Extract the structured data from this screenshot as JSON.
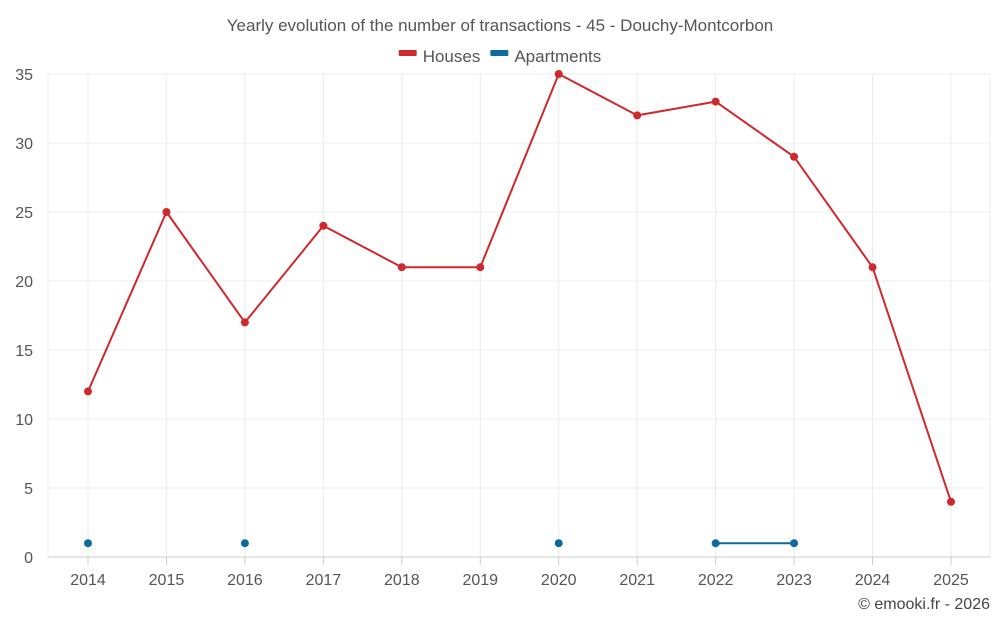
{
  "chart_data": {
    "type": "line",
    "title": "Yearly evolution of the number of transactions - 45 - Douchy-Montcorbon",
    "xlabel": "",
    "ylabel": "",
    "categories": [
      "2014",
      "2015",
      "2016",
      "2017",
      "2018",
      "2019",
      "2020",
      "2021",
      "2022",
      "2023",
      "2024",
      "2025"
    ],
    "ylim": [
      0,
      35
    ],
    "yticks": [
      0,
      5,
      10,
      15,
      20,
      25,
      30,
      35
    ],
    "grid": true,
    "legend_position": "top-center",
    "series": [
      {
        "name": "Houses",
        "color": "#d0282c",
        "values": [
          12,
          25,
          17,
          24,
          21,
          21,
          35,
          32,
          33,
          29,
          21,
          4
        ]
      },
      {
        "name": "Apartments",
        "color": "#0d6a9c",
        "values": [
          1,
          null,
          1,
          null,
          null,
          null,
          1,
          null,
          1,
          1,
          null,
          null
        ]
      }
    ]
  },
  "credit": "© emooki.fr - 2026"
}
